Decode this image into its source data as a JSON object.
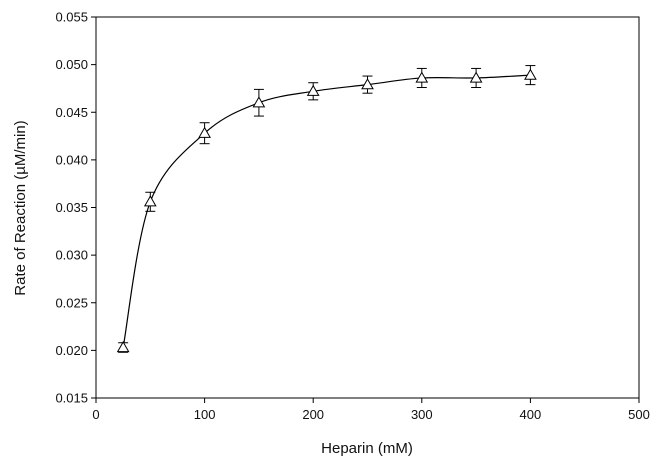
{
  "chart_data": {
    "type": "scatter",
    "title": "",
    "xlabel": "Heparin (mM)",
    "ylabel": "Rate of Reaction (µM/min)",
    "xlim": [
      0,
      500
    ],
    "ylim": [
      0.015,
      0.055
    ],
    "x_ticks": [
      0,
      100,
      200,
      300,
      400,
      500
    ],
    "x_tick_labels": [
      "0",
      "100",
      "200",
      "300",
      "400",
      "500"
    ],
    "y_ticks": [
      0.015,
      0.02,
      0.025,
      0.03,
      0.035,
      0.04,
      0.045,
      0.05,
      0.055
    ],
    "y_tick_labels": [
      "0.015",
      "0.020",
      "0.025",
      "0.030",
      "0.035",
      "0.040",
      "0.045",
      "0.050",
      "0.055"
    ],
    "grid": false,
    "legend": "none",
    "marker": "open-triangle",
    "fit_curve": true,
    "series": [
      {
        "x": [
          25,
          50,
          100,
          150,
          200,
          250,
          300,
          350,
          400
        ],
        "y": [
          0.0203,
          0.0356,
          0.0428,
          0.046,
          0.0472,
          0.0479,
          0.0486,
          0.0486,
          0.0489
        ],
        "error": [
          0.0005,
          0.001,
          0.0011,
          0.0014,
          0.0009,
          0.0009,
          0.001,
          0.001,
          0.001
        ]
      }
    ]
  }
}
